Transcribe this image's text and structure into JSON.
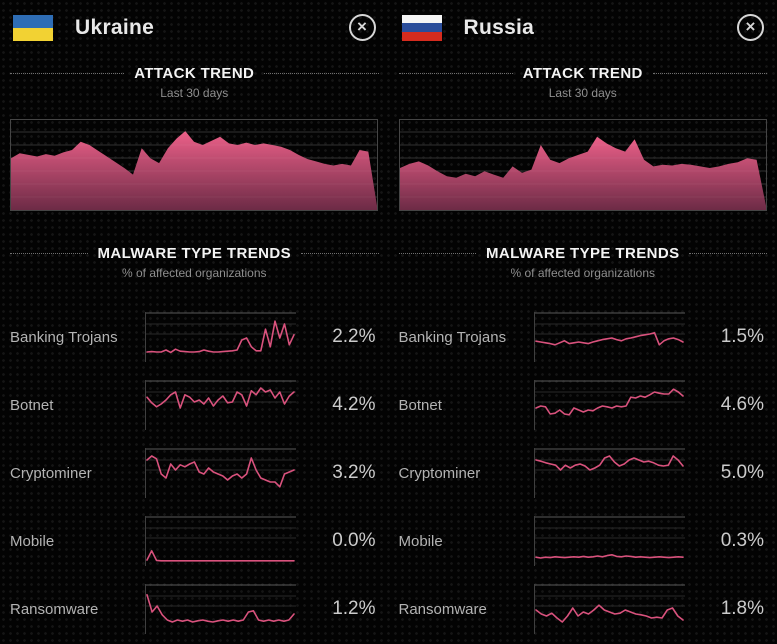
{
  "ui": {
    "close_glyph": "×"
  },
  "colors": {
    "accent": "#d9527d",
    "area_top": "#ec6089",
    "area_bottom": "#6d2b46",
    "grid": "#2a2a2a",
    "frame": "#4a4a4a"
  },
  "panels": [
    {
      "country": "Ukraine",
      "flag_name": "ukraine-flag",
      "flag_colors": [
        "#2e6db5",
        "#f2d233"
      ],
      "attack_trend": {
        "title": "ATTACK TREND",
        "subtitle": "Last 30 days"
      },
      "malware": {
        "title": "MALWARE TYPE TRENDS",
        "subtitle": "% of affected organizations",
        "rows": [
          {
            "label": "Banking Trojans",
            "value": "2.2%"
          },
          {
            "label": "Botnet",
            "value": "4.2%"
          },
          {
            "label": "Cryptominer",
            "value": "3.2%"
          },
          {
            "label": "Mobile",
            "value": "0.0%"
          },
          {
            "label": "Ransomware",
            "value": "1.2%"
          }
        ]
      }
    },
    {
      "country": "Russia",
      "flag_name": "russia-flag",
      "flag_colors": [
        "#f5f5f5",
        "#2a4d9b",
        "#d52b1e"
      ],
      "attack_trend": {
        "title": "ATTACK TREND",
        "subtitle": "Last 30 days"
      },
      "malware": {
        "title": "MALWARE TYPE TRENDS",
        "subtitle": "% of affected organizations",
        "rows": [
          {
            "label": "Banking Trojans",
            "value": "1.5%"
          },
          {
            "label": "Botnet",
            "value": "4.6%"
          },
          {
            "label": "Cryptominer",
            "value": "5.0%"
          },
          {
            "label": "Mobile",
            "value": "0.3%"
          },
          {
            "label": "Ransomware",
            "value": "1.8%"
          }
        ]
      }
    }
  ],
  "chart_data": [
    {
      "type": "area",
      "country": "Ukraine",
      "title": "ATTACK TREND",
      "subtitle": "Last 30 days",
      "xlabel": "last 30 days (no tick labels shown)",
      "ylabel": "relative attack volume (unlabeled axis)",
      "ylim": [
        0,
        100
      ],
      "grid": "horizontal",
      "values": [
        62,
        68,
        66,
        64,
        67,
        65,
        69,
        72,
        82,
        78,
        71,
        64,
        57,
        50,
        42,
        74,
        62,
        56,
        74,
        86,
        95,
        82,
        78,
        83,
        88,
        80,
        78,
        81,
        78,
        80,
        78,
        76,
        72,
        66,
        61,
        58,
        55,
        53,
        55,
        53,
        72,
        70,
        4
      ]
    },
    {
      "type": "line",
      "country": "Ukraine",
      "title": "MALWARE TYPE TRENDS",
      "subtitle": "% of affected organizations",
      "series": [
        {
          "name": "Banking Trojans",
          "current": "2.2%",
          "spark": [
            15,
            16,
            15,
            15,
            20,
            14,
            22,
            17,
            16,
            15,
            15,
            16,
            20,
            17,
            15,
            15,
            16,
            17,
            18,
            20,
            45,
            50,
            28,
            18,
            18,
            72,
            28,
            92,
            50,
            85,
            33,
            58
          ]
        },
        {
          "name": "Botnet",
          "current": "4.2%",
          "spark": [
            72,
            58,
            48,
            55,
            65,
            78,
            85,
            45,
            78,
            72,
            60,
            65,
            55,
            70,
            50,
            65,
            75,
            58,
            60,
            85,
            78,
            50,
            88,
            78,
            95,
            85,
            90,
            70,
            85,
            55,
            75,
            85
          ]
        },
        {
          "name": "Cryptominer",
          "current": "3.2%",
          "spark": [
            85,
            95,
            88,
            50,
            40,
            75,
            60,
            73,
            68,
            75,
            80,
            55,
            50,
            65,
            55,
            50,
            45,
            35,
            45,
            50,
            40,
            50,
            90,
            60,
            40,
            35,
            30,
            30,
            18,
            50,
            55,
            60
          ]
        },
        {
          "name": "Mobile",
          "current": "0.0%",
          "spark": [
            5,
            28,
            4,
            3,
            3,
            3,
            3,
            3,
            3,
            3,
            3,
            3,
            3,
            3,
            3,
            3,
            3,
            3,
            3,
            3,
            3,
            3,
            3,
            3,
            3,
            3,
            3,
            3,
            3,
            3,
            3,
            3
          ]
        },
        {
          "name": "Ransomware",
          "current": "1.2%",
          "spark": [
            88,
            45,
            60,
            38,
            25,
            20,
            25,
            22,
            25,
            20,
            23,
            25,
            22,
            20,
            23,
            25,
            22,
            25,
            22,
            25,
            45,
            48,
            25,
            22,
            25,
            22,
            25,
            22,
            25,
            40
          ]
        }
      ]
    },
    {
      "type": "area",
      "country": "Russia",
      "title": "ATTACK TREND",
      "subtitle": "Last 30 days",
      "xlabel": "last 30 days (no tick labels shown)",
      "ylabel": "relative attack volume (unlabeled axis)",
      "ylim": [
        0,
        100
      ],
      "grid": "horizontal",
      "values": [
        50,
        55,
        58,
        53,
        46,
        40,
        38,
        43,
        40,
        46,
        42,
        38,
        52,
        44,
        48,
        78,
        60,
        56,
        62,
        66,
        70,
        88,
        80,
        74,
        70,
        85,
        60,
        52,
        54,
        53,
        55,
        54,
        52,
        50,
        52,
        55,
        57,
        62,
        60,
        4
      ]
    },
    {
      "type": "line",
      "country": "Russia",
      "title": "MALWARE TYPE TRENDS",
      "subtitle": "% of affected organizations",
      "series": [
        {
          "name": "Banking Trojans",
          "current": "1.5%",
          "spark": [
            42,
            40,
            38,
            36,
            33,
            38,
            43,
            36,
            38,
            40,
            38,
            36,
            40,
            43,
            46,
            48,
            50,
            46,
            43,
            48,
            50,
            53,
            56,
            58,
            60,
            63,
            33,
            43,
            48,
            50,
            46,
            40
          ]
        },
        {
          "name": "Botnet",
          "current": "4.6%",
          "spark": [
            45,
            50,
            48,
            30,
            32,
            40,
            30,
            28,
            45,
            40,
            35,
            40,
            38,
            45,
            50,
            48,
            45,
            50,
            48,
            50,
            72,
            70,
            75,
            72,
            78,
            85,
            82,
            80,
            80,
            92,
            85,
            75
          ]
        },
        {
          "name": "Cryptominer",
          "current": "5.0%",
          "spark": [
            85,
            82,
            78,
            75,
            72,
            60,
            72,
            65,
            72,
            75,
            70,
            60,
            65,
            72,
            90,
            95,
            80,
            70,
            75,
            85,
            90,
            85,
            80,
            82,
            78,
            72,
            70,
            72,
            95,
            85,
            70
          ]
        },
        {
          "name": "Mobile",
          "current": "0.3%",
          "spark": [
            12,
            10,
            12,
            11,
            13,
            12,
            11,
            12,
            13,
            12,
            14,
            12,
            13,
            15,
            13,
            16,
            18,
            14,
            13,
            15,
            14,
            12,
            13,
            12,
            11,
            12,
            13,
            12,
            11,
            12,
            13,
            12
          ]
        },
        {
          "name": "Ransomware",
          "current": "1.8%",
          "spark": [
            50,
            40,
            35,
            42,
            30,
            20,
            35,
            55,
            35,
            45,
            40,
            50,
            62,
            50,
            45,
            40,
            42,
            50,
            45,
            40,
            38,
            35,
            30,
            32,
            30,
            50,
            55,
            35,
            25
          ]
        }
      ]
    }
  ]
}
